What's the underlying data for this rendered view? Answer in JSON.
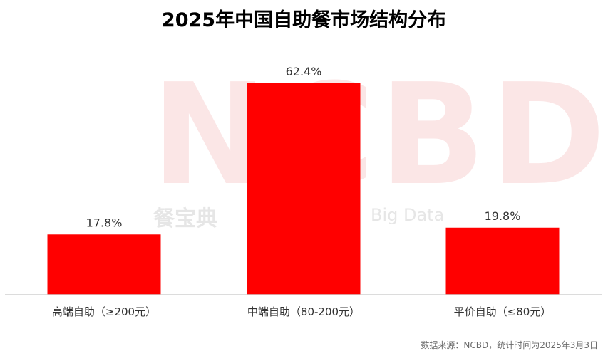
{
  "watermark": {
    "letters": "NCBD",
    "cn": "餐宝典",
    "en": "Big Data"
  },
  "chart_data": {
    "type": "bar",
    "title": "2025年中国自助餐市场结构分布",
    "categories": [
      "高端自助（≥200元）",
      "中端自助（80-200元）",
      "平价自助（≤80元）"
    ],
    "values": [
      17.8,
      62.4,
      19.8
    ],
    "value_labels": [
      "17.8%",
      "62.4%",
      "19.8%"
    ],
    "unit": "%",
    "ylim": [
      0,
      70
    ],
    "grid": false,
    "legend": "none",
    "bar_color": "#ff0000",
    "source": "数据来源：NCBD，统计时间为2025年3月3日"
  }
}
